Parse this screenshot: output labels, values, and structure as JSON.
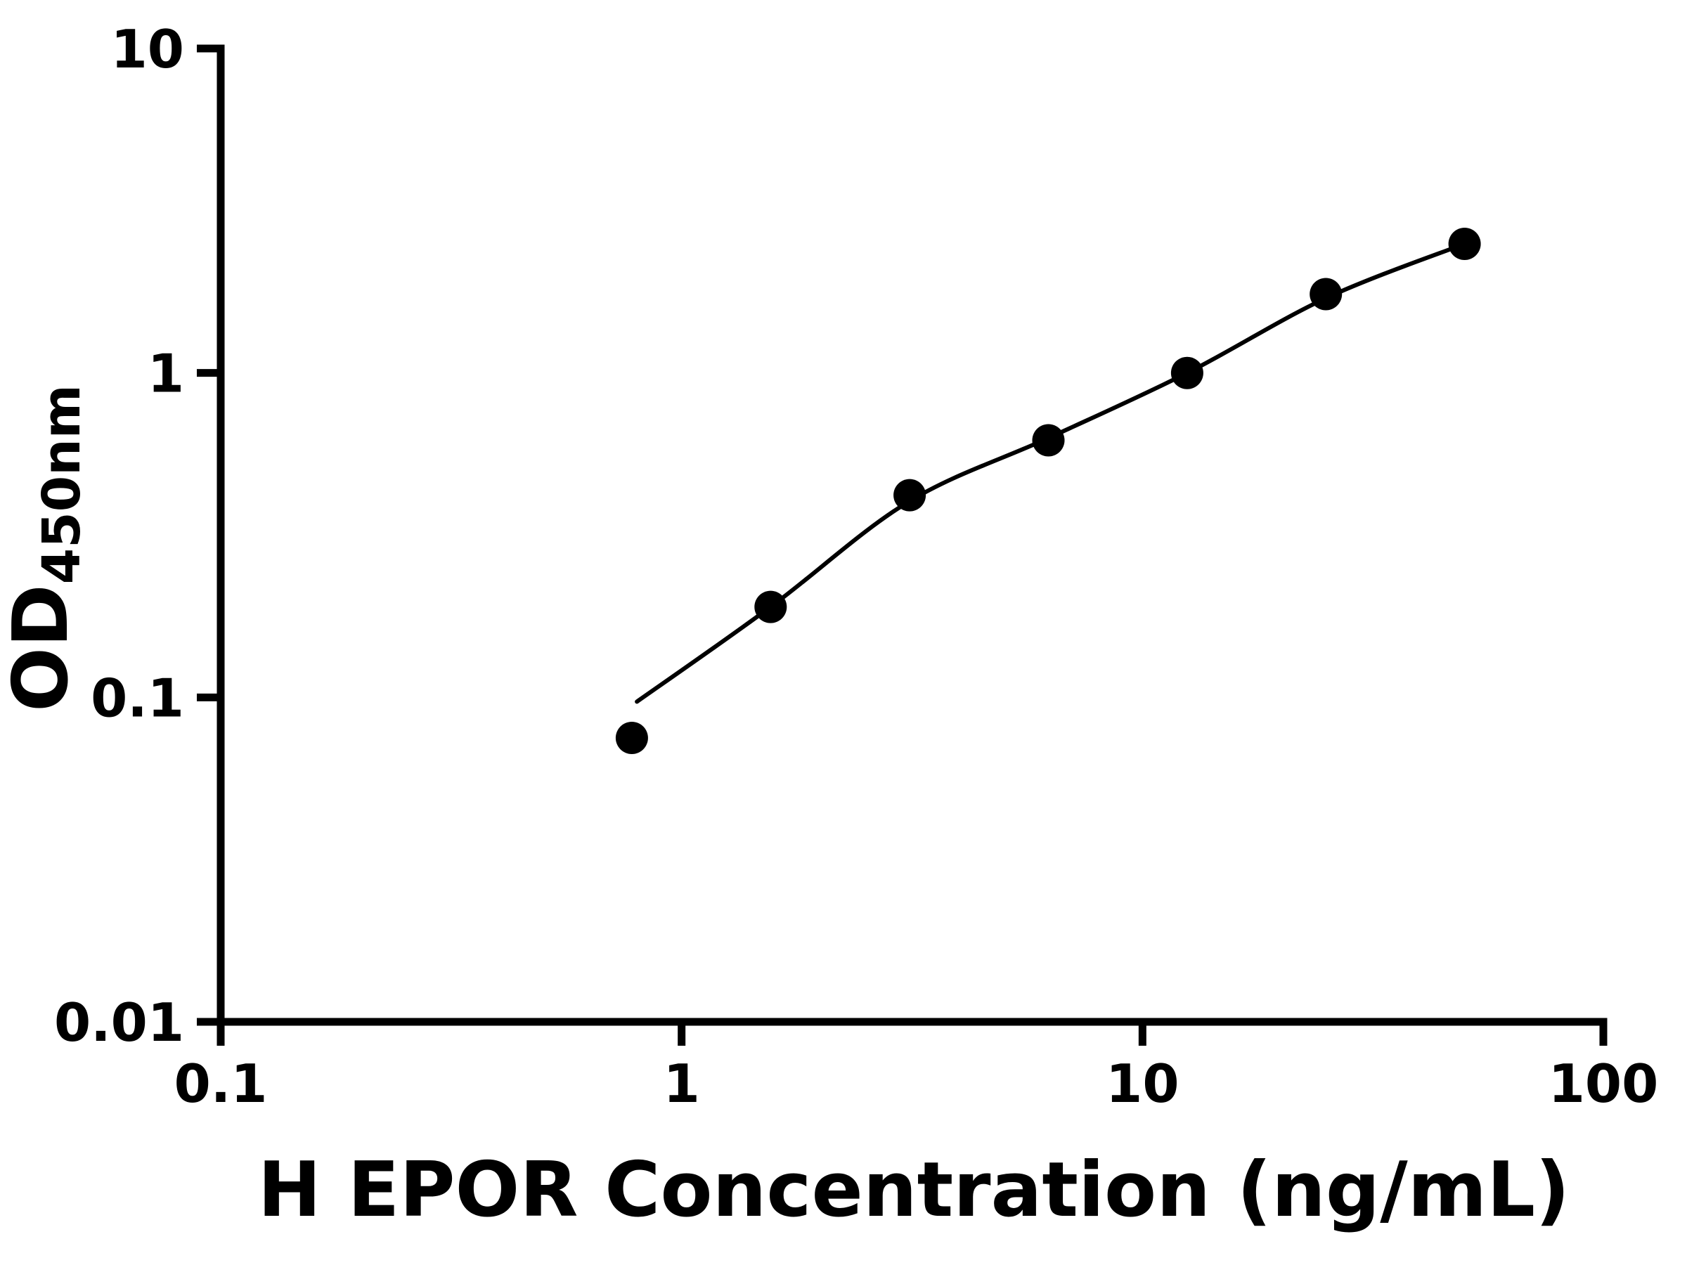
{
  "page": {
    "background_color": "#ffffff"
  },
  "chart_data": {
    "type": "scatter",
    "title": "",
    "xlabel": "H EPOR Concentration (ng/mL)",
    "ylabel_main": "OD",
    "ylabel_sub": "450nm",
    "x_scale": "log",
    "y_scale": "log",
    "xlim": [
      0.1,
      100
    ],
    "ylim": [
      0.01,
      10
    ],
    "x_ticks": [
      0.1,
      1,
      10,
      100
    ],
    "x_tick_labels": [
      "0.1",
      "1",
      "10",
      "100"
    ],
    "y_ticks": [
      0.01,
      0.1,
      1,
      10
    ],
    "y_tick_labels": [
      "0.01",
      "0.1",
      "1",
      "10"
    ],
    "grid": false,
    "legend": "none",
    "marker_color": "#000000",
    "line_color": "#000000",
    "axis_color": "#000000",
    "series": [
      {
        "x": [
          0.78,
          1.56,
          3.125,
          6.25,
          12.5,
          25,
          50
        ],
        "y": [
          0.075,
          0.19,
          0.42,
          0.62,
          1.0,
          1.75,
          2.5
        ]
      }
    ],
    "fit_curve": {
      "x": [
        0.8,
        1.56,
        3.1,
        6.25,
        12.5,
        25,
        50
      ],
      "y": [
        0.097,
        0.19,
        0.4,
        0.63,
        1.0,
        1.7,
        2.5
      ]
    }
  }
}
